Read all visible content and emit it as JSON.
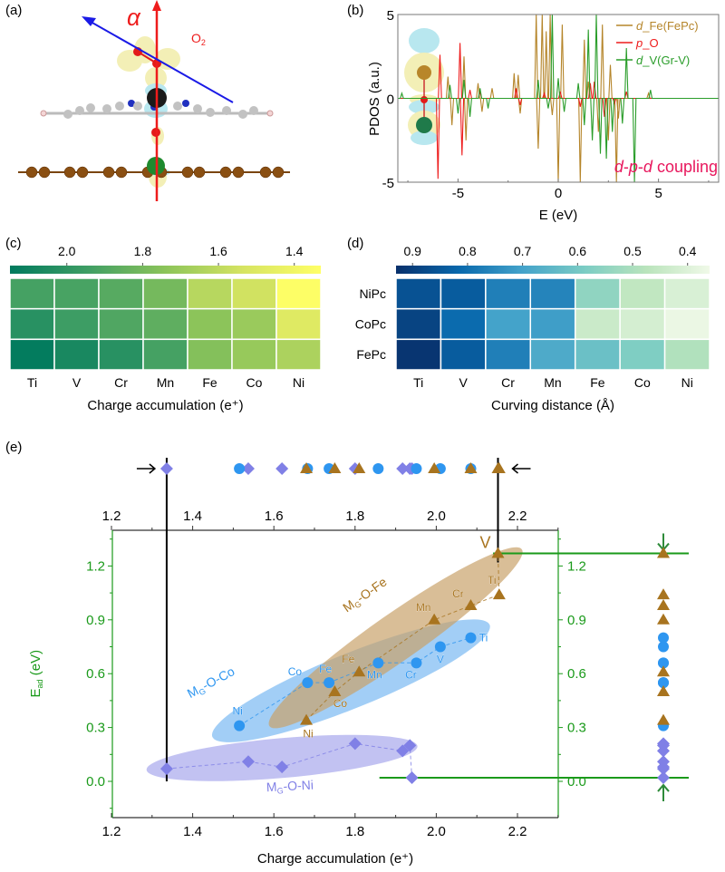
{
  "panels": {
    "a": {
      "label": "(a)",
      "alpha_symbol": "α",
      "o2_label": "O",
      "o2_subscript": "2",
      "colors": {
        "arrow_vertical": "#ee1c1c",
        "arrow_tilted": "#1a1ae6",
        "carbon_substrate": "#7a4510",
        "metal_center": "#1a1a1a",
        "dopant": "#1e8a2e",
        "oxygen": "#e31a1a",
        "density_yellow": "#f3efb6",
        "density_cyan": "#b8e7ef"
      }
    },
    "b": {
      "label": "(b)",
      "annotation_italic_1": "d",
      "annotation_dash_1": "-",
      "annotation_italic_2": "p",
      "annotation_dash_2": "-",
      "annotation_italic_3": "d",
      "annotation_rest": " coupling",
      "annotation_color": "#e8175d"
    },
    "c": {
      "label": "(c)"
    },
    "d": {
      "label": "(d)"
    },
    "e": {
      "label": "(e)"
    }
  },
  "chart_data": [
    {
      "id": "b",
      "type": "line",
      "title": "",
      "xlabel": "E (eV)",
      "ylabel": "PDOS (a.u.)",
      "xlim": [
        -8,
        8
      ],
      "ylim": [
        -5,
        5
      ],
      "xticks": [
        -5,
        0,
        5
      ],
      "yticks": [
        -5,
        0,
        5
      ],
      "legend": "top-right",
      "series": [
        {
          "name": "d_Fe(FePc)",
          "italic": "d",
          "rest": "_Fe(FePc)",
          "color": "#b5852a",
          "peaks": [
            [
              -5.5,
              1.3
            ],
            [
              -5.3,
              -1.6
            ],
            [
              -4.7,
              2.5
            ],
            [
              -4.6,
              -2.5
            ],
            [
              -4.0,
              0.9
            ],
            [
              -3.8,
              -0.8
            ],
            [
              -3.3,
              0.6
            ],
            [
              -2.2,
              1.5
            ],
            [
              -2.0,
              1.4
            ],
            [
              -1.9,
              -0.9
            ],
            [
              -1.1,
              5
            ],
            [
              -1.0,
              -3
            ],
            [
              -0.8,
              5
            ],
            [
              -0.6,
              4
            ],
            [
              -0.4,
              5
            ],
            [
              -0.3,
              -1
            ],
            [
              0,
              -5
            ],
            [
              0.2,
              4.4
            ],
            [
              1.1,
              -5
            ],
            [
              1.3,
              3.5
            ],
            [
              1.5,
              1.0
            ],
            [
              2.0,
              -2
            ],
            [
              2.2,
              4.4
            ],
            [
              2.5,
              -2.5
            ],
            [
              2.6,
              2.0
            ],
            [
              2.9,
              -5
            ],
            [
              3.0,
              -1.2
            ],
            [
              4.5,
              0.3
            ]
          ]
        },
        {
          "name": "p_O",
          "italic": "p",
          "rest": "_O",
          "color": "#ee1c1c",
          "peaks": [
            [
              -6.0,
              -4.8
            ],
            [
              -5.9,
              2.6
            ],
            [
              -4.9,
              3.3
            ],
            [
              -4.8,
              -3.4
            ],
            [
              -4.4,
              0.5
            ],
            [
              -3.9,
              0.4
            ],
            [
              -2.1,
              0.6
            ],
            [
              -1.9,
              -0.4
            ],
            [
              -0.7,
              0.3
            ],
            [
              0.1,
              0.4
            ],
            [
              1.1,
              -0.5
            ],
            [
              1.6,
              0.9
            ],
            [
              1.8,
              1.0
            ],
            [
              2.3,
              -1.1
            ],
            [
              2.8,
              -0.3
            ],
            [
              3.4,
              0.4
            ]
          ]
        },
        {
          "name": "d_V(Gr-V)",
          "italic": "d",
          "rest": "_V(Gr-V)",
          "color": "#2a9d2a",
          "peaks": [
            [
              -7.8,
              0.3
            ],
            [
              -5.4,
              0.8
            ],
            [
              -5.0,
              -0.9
            ],
            [
              -4.7,
              1.1
            ],
            [
              -4.4,
              -1.1
            ],
            [
              -3.9,
              0.6
            ],
            [
              -3.5,
              -0.6
            ],
            [
              -1.0,
              1.1
            ],
            [
              -0.5,
              -0.6
            ],
            [
              -0.3,
              5
            ],
            [
              0.0,
              1.2
            ],
            [
              0.3,
              -0.8
            ],
            [
              1.0,
              0.9
            ],
            [
              1.3,
              -1.6
            ],
            [
              1.5,
              4.1
            ],
            [
              1.7,
              -2.5
            ],
            [
              1.9,
              5
            ],
            [
              2.1,
              -3.3
            ],
            [
              2.4,
              -3.6
            ],
            [
              2.7,
              -2.0
            ],
            [
              3.2,
              -1.5
            ],
            [
              3.4,
              3.0
            ],
            [
              3.8,
              -5
            ],
            [
              4.6,
              0.5
            ]
          ]
        }
      ],
      "inset": "charge density isosurface: Fe (gold) - O (red) - V (green)"
    },
    {
      "id": "c",
      "type": "heatmap",
      "title": "",
      "xlabel": "Charge accumulation (e⁺)",
      "x_categories": [
        "Ti",
        "V",
        "Cr",
        "Mn",
        "Fe",
        "Co",
        "Ni"
      ],
      "y_categories": [
        "NiPc",
        "CoPc",
        "FePc"
      ],
      "show_y_labels": false,
      "colorbar": {
        "ticks": [
          2.0,
          1.8,
          1.6,
          1.4
        ],
        "range": [
          2.15,
          1.33
        ],
        "colors": [
          "#007a5e",
          "#3f9e64",
          "#8cc45a",
          "#d6e462",
          "#ffff66"
        ]
      },
      "values": [
        [
          1.93,
          1.92,
          1.88,
          1.8,
          1.62,
          1.55,
          1.34
        ],
        [
          2.02,
          1.95,
          1.9,
          1.86,
          1.74,
          1.7,
          1.49
        ],
        [
          2.14,
          2.07,
          2.02,
          1.93,
          1.76,
          1.71,
          1.65
        ]
      ]
    },
    {
      "id": "d",
      "type": "heatmap",
      "title": "",
      "xlabel": "Curving distance (Å)",
      "x_categories": [
        "Ti",
        "V",
        "Cr",
        "Mn",
        "Fe",
        "Co",
        "Ni"
      ],
      "y_categories": [
        "NiPc",
        "CoPc",
        "FePc"
      ],
      "show_y_labels": true,
      "colorbar": {
        "ticks": [
          0.9,
          0.8,
          0.7,
          0.6,
          0.5,
          0.4
        ],
        "range": [
          0.93,
          0.36
        ],
        "colors": [
          "#08306b",
          "#0868ac",
          "#43a2ca",
          "#7bccc4",
          "#bae4bc",
          "#f0f9e8"
        ]
      },
      "values": [
        [
          0.86,
          0.84,
          0.77,
          0.76,
          0.55,
          0.46,
          0.41
        ],
        [
          0.89,
          0.81,
          0.7,
          0.71,
          0.44,
          0.42,
          0.37
        ],
        [
          0.92,
          0.84,
          0.77,
          0.68,
          0.62,
          0.58,
          0.49
        ]
      ]
    },
    {
      "id": "e",
      "type": "scatter",
      "title": "",
      "xlabel": "Charge accumulation (e⁺)",
      "ylabel": "E",
      "ylabel_sub": "ad",
      "ylabel_unit": " (eV)",
      "xlim": [
        1.2,
        2.3
      ],
      "ylim": [
        -0.2,
        1.38
      ],
      "xticks": [
        1.2,
        1.4,
        1.6,
        1.8,
        2.0,
        2.2
      ],
      "yticks": [
        0.0,
        0.3,
        0.6,
        0.9,
        1.2
      ],
      "ytick_labels": [
        "0.0",
        "0.3",
        "0.6",
        "0.9",
        "1.2"
      ],
      "xtick_labels": [
        "1.2",
        "1.4",
        "1.6",
        "1.8",
        "2.0",
        "2.2"
      ],
      "axis_color": "#1a9a1a",
      "vlines": [
        1.336,
        2.152
      ],
      "hlines": [
        {
          "y": 1.27,
          "from": 2.14
        },
        {
          "y": 0.02,
          "from": 1.86
        }
      ],
      "series": [
        {
          "name": "MG-O-Ni",
          "label_main": "M",
          "label_sub": "G",
          "label_rest": "-O-Ni",
          "marker": "diamond",
          "color": "#8080e6",
          "ellipse_color": "#a8a8ec",
          "points": [
            {
              "x": 1.336,
              "y": 0.07,
              "label": ""
            },
            {
              "x": 1.537,
              "y": 0.11,
              "label": ""
            },
            {
              "x": 1.62,
              "y": 0.08,
              "label": ""
            },
            {
              "x": 1.8,
              "y": 0.21,
              "label": ""
            },
            {
              "x": 1.917,
              "y": 0.17,
              "label": ""
            },
            {
              "x": 1.935,
              "y": 0.2,
              "label": ""
            },
            {
              "x": 1.94,
              "y": 0.02,
              "label": ""
            }
          ]
        },
        {
          "name": "MG-O-Co",
          "label_main": "M",
          "label_sub": "G",
          "label_rest": "-O-Co",
          "marker": "circle",
          "color": "#2e96f0",
          "ellipse_color": "#7bb9f2",
          "points": [
            {
              "x": 1.515,
              "y": 0.31,
              "label": "Ni"
            },
            {
              "x": 1.683,
              "y": 0.55,
              "label": "Co"
            },
            {
              "x": 1.736,
              "y": 0.55,
              "label": "Fe"
            },
            {
              "x": 1.857,
              "y": 0.66,
              "label": "Mn"
            },
            {
              "x": 1.951,
              "y": 0.66,
              "label": "Cr"
            },
            {
              "x": 2.01,
              "y": 0.75,
              "label": "V"
            },
            {
              "x": 2.085,
              "y": 0.8,
              "label": "Ti"
            }
          ]
        },
        {
          "name": "MG-O-Fe",
          "label_main": "M",
          "label_sub": "G",
          "label_rest": "-O-Fe",
          "marker": "triangle",
          "color": "#a8741f",
          "ellipse_color": "#c9a26b",
          "points": [
            {
              "x": 1.68,
              "y": 0.34,
              "label": "Ni"
            },
            {
              "x": 1.75,
              "y": 0.5,
              "label": "Co"
            },
            {
              "x": 1.81,
              "y": 0.61,
              "label": "Fe"
            },
            {
              "x": 1.995,
              "y": 0.9,
              "label": "Mn"
            },
            {
              "x": 2.085,
              "y": 0.98,
              "label": "Cr"
            },
            {
              "x": 2.155,
              "y": 1.04,
              "label": "Ti"
            },
            {
              "x": 2.152,
              "y": 1.27,
              "label": "V"
            }
          ]
        }
      ],
      "projections": {
        "top": "x-values projected",
        "right": "y-values projected"
      }
    }
  ]
}
